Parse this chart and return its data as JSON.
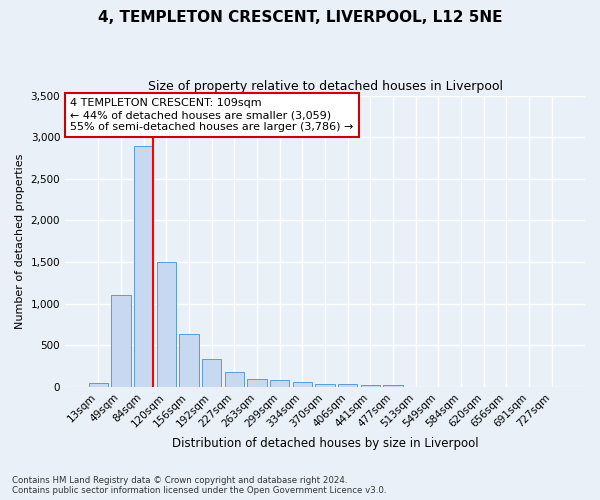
{
  "title": "4, TEMPLETON CRESCENT, LIVERPOOL, L12 5NE",
  "subtitle": "Size of property relative to detached houses in Liverpool",
  "xlabel": "Distribution of detached houses by size in Liverpool",
  "ylabel": "Number of detached properties",
  "footnote1": "Contains HM Land Registry data © Crown copyright and database right 2024.",
  "footnote2": "Contains public sector information licensed under the Open Government Licence v3.0.",
  "categories": [
    "13sqm",
    "49sqm",
    "84sqm",
    "120sqm",
    "156sqm",
    "192sqm",
    "227sqm",
    "263sqm",
    "299sqm",
    "334sqm",
    "370sqm",
    "406sqm",
    "441sqm",
    "477sqm",
    "513sqm",
    "549sqm",
    "584sqm",
    "620sqm",
    "656sqm",
    "691sqm",
    "727sqm"
  ],
  "values": [
    50,
    1100,
    2900,
    1500,
    640,
    330,
    185,
    100,
    85,
    55,
    40,
    35,
    25,
    20,
    5,
    3,
    2,
    1,
    1,
    0,
    0
  ],
  "bar_color": "#c6d9f0",
  "bar_edge_color": "#5b9bd5",
  "red_line_x": 2.42,
  "red_line_label": "4 TEMPLETON CRESCENT: 109sqm",
  "annotation_line1": "← 44% of detached houses are smaller (3,059)",
  "annotation_line2": "55% of semi-detached houses are larger (3,786) →",
  "annotation_box_color": "#ffffff",
  "annotation_box_edge": "#cc0000",
  "ylim": [
    0,
    3500
  ],
  "yticks": [
    0,
    500,
    1000,
    1500,
    2000,
    2500,
    3000,
    3500
  ],
  "bg_color": "#eaf0f8",
  "plot_bg_color": "#eaf0f8",
  "grid_color": "#ffffff",
  "title_fontsize": 11,
  "subtitle_fontsize": 9,
  "ylabel_fontsize": 8,
  "xlabel_fontsize": 8.5,
  "tick_fontsize": 7.5,
  "annot_fontsize": 8
}
